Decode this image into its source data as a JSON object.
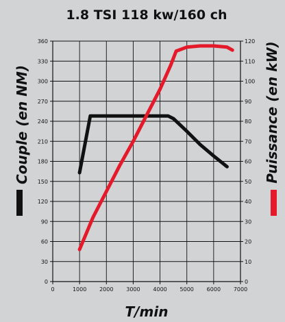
{
  "chart_data": {
    "type": "line",
    "title": "1.8 TSI 118 kw/160 ch",
    "xlabel": "T/min",
    "ylabel": "Couple (en NM)",
    "y2label": "Puissance (en kW)",
    "xlim": [
      0,
      7000
    ],
    "ylim": [
      0,
      360
    ],
    "y2lim": [
      0,
      120
    ],
    "x_ticks": [
      "0",
      "1000",
      "2000",
      "3000",
      "4000",
      "5000",
      "6000",
      "7000"
    ],
    "y_ticks": [
      "0",
      "30",
      "60",
      "90",
      "120",
      "150",
      "180",
      "210",
      "240",
      "270",
      "300",
      "330",
      "360"
    ],
    "y2_ticks": [
      "0",
      "10",
      "20",
      "30",
      "40",
      "50",
      "60",
      "70",
      "80",
      "90",
      "100",
      "110",
      "120"
    ],
    "grid": true,
    "series": [
      {
        "name": "Couple (en NM)",
        "axis": "left",
        "color": "#111111",
        "x": [
          1000,
          1400,
          1500,
          2000,
          3000,
          4000,
          4300,
          4500,
          5000,
          5500,
          6000,
          6500
        ],
        "y": [
          163,
          248,
          248,
          248,
          248,
          248,
          248,
          244,
          225,
          205,
          188,
          172
        ]
      },
      {
        "name": "Puissance (en kW)",
        "axis": "right",
        "color": "#e41a2a",
        "x": [
          1000,
          1500,
          2000,
          2500,
          3000,
          3500,
          4000,
          4400,
          4600,
          5000,
          5500,
          6000,
          6500,
          6700
        ],
        "y": [
          16,
          32,
          45,
          58,
          70,
          83,
          96,
          108,
          115,
          117,
          117.6,
          117.6,
          117,
          115.5
        ]
      }
    ],
    "legend": [
      {
        "label": "Couple (en NM)",
        "color": "#111111",
        "position": "left"
      },
      {
        "label": "Puissance (en kW)",
        "color": "#e41a2a",
        "position": "right"
      }
    ]
  }
}
